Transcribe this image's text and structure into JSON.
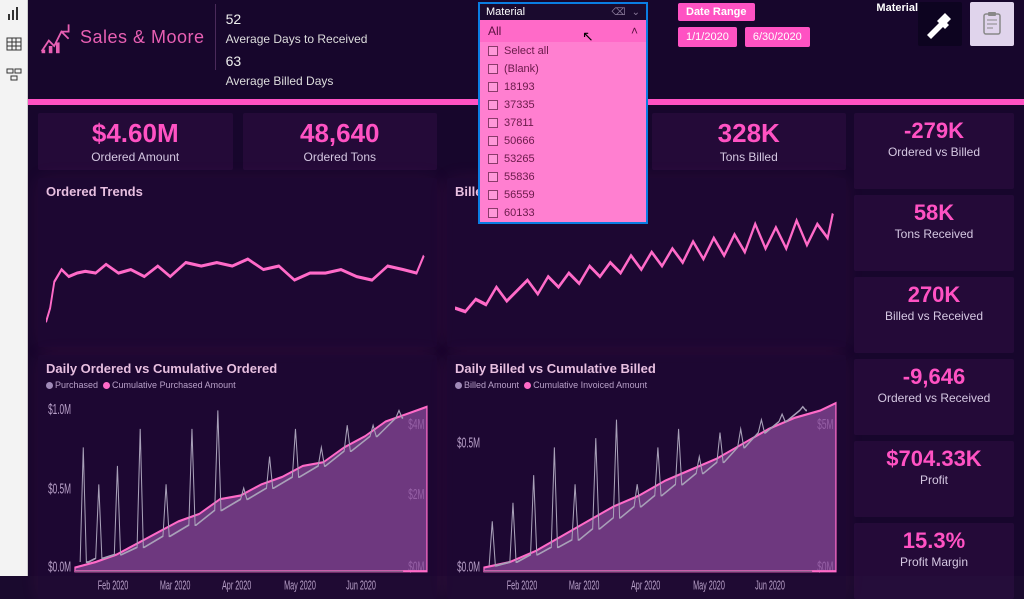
{
  "colors": {
    "accent": "#ff52c3",
    "background": "#17062c",
    "card": "rgba(40,10,60,0.4)",
    "text_light": "#d5c8e2",
    "line_chart": "#ff6ac8",
    "purchased_dot": "#a08ab8",
    "area_fill": "#b05cb0",
    "area_stroke": "#ff6ac8",
    "grey_line": "#a8a0b8",
    "slicer_highlight": "#0a7de2"
  },
  "brand": {
    "name": "Sales & Moore"
  },
  "facts": {
    "n1": "52",
    "l1": "Average Days to Received",
    "n2": "63",
    "l2": "Average Billed Days"
  },
  "date_range": {
    "title": "Date Range",
    "from": "1/1/2020",
    "to": "6/30/2020"
  },
  "mat_label": "Material",
  "kpis_top": [
    {
      "val": "$4.60M",
      "lbl": "Ordered Amount"
    },
    {
      "val": "48,640",
      "lbl": "Ordered Tons"
    },
    {
      "val": "",
      "lbl": ""
    },
    {
      "val": "328K",
      "lbl": "Tons Billed"
    }
  ],
  "kpis_right": [
    {
      "val": "-279K",
      "lbl": "Ordered vs Billed"
    },
    {
      "val": "58K",
      "lbl": "Tons Received"
    },
    {
      "val": "270K",
      "lbl": "Billed vs Received"
    },
    {
      "val": "-9,646",
      "lbl": "Ordered vs Received"
    },
    {
      "val": "$704.33K",
      "lbl": "Profit"
    },
    {
      "val": "15.3%",
      "lbl": "Profit Margin"
    }
  ],
  "slicer": {
    "title": "Material",
    "selected": "All",
    "items": [
      "Select all",
      "(Blank)",
      "18193",
      "37335",
      "37811",
      "50666",
      "53265",
      "55836",
      "56559",
      "60133"
    ]
  },
  "ordered_trends": {
    "title": "Ordered Trends",
    "type": "line",
    "stroke": "#ff6ac8",
    "stroke_width": 1.8,
    "points": [
      0,
      68,
      4,
      60,
      8,
      45,
      15,
      38,
      22,
      42,
      30,
      40,
      38,
      39,
      48,
      40,
      58,
      35,
      70,
      40,
      82,
      38,
      95,
      42,
      108,
      36,
      120,
      42,
      135,
      34,
      150,
      36,
      165,
      34,
      180,
      36,
      195,
      32,
      210,
      38,
      225,
      36,
      240,
      44,
      255,
      40,
      270,
      40,
      285,
      38,
      300,
      42,
      315,
      44,
      330,
      36,
      345,
      38,
      358,
      40,
      365,
      30
    ]
  },
  "billed_trends": {
    "title": "Billed Trends",
    "type": "line",
    "stroke": "#ff6ac8",
    "stroke_width": 2,
    "points": [
      0,
      60,
      10,
      62,
      20,
      55,
      30,
      58,
      40,
      48,
      50,
      56,
      60,
      50,
      70,
      44,
      80,
      52,
      90,
      42,
      100,
      48,
      110,
      40,
      120,
      46,
      130,
      36,
      140,
      42,
      150,
      34,
      160,
      40,
      170,
      30,
      180,
      38,
      190,
      28,
      200,
      36,
      210,
      26,
      220,
      34,
      230,
      22,
      240,
      32,
      250,
      20,
      260,
      30,
      270,
      18,
      280,
      28,
      290,
      12,
      300,
      26,
      310,
      14,
      320,
      26,
      330,
      10,
      340,
      24,
      350,
      12,
      360,
      20,
      365,
      6
    ]
  },
  "daily_ordered": {
    "title": "Daily Ordered vs Cumulative Ordered",
    "legend": [
      {
        "color": "#a08ab8",
        "label": "Purchased"
      },
      {
        "color": "#ff6ac8",
        "label": "Cumulative Purchased Amount"
      }
    ],
    "y_left": {
      "ticks": [
        "$1.0M",
        "$0.5M",
        "$0.0M"
      ]
    },
    "y_right": {
      "ticks": [
        "$4M",
        "$2M",
        "$0M"
      ]
    },
    "x_ticks": [
      "Feb 2020",
      "Mar 2020",
      "Apr 2020",
      "May 2020",
      "Jun 2020"
    ],
    "area": [
      0,
      95,
      20,
      92,
      40,
      88,
      60,
      82,
      80,
      76,
      100,
      70,
      120,
      66,
      140,
      58,
      160,
      56,
      180,
      50,
      200,
      46,
      220,
      40,
      240,
      38,
      260,
      30,
      280,
      24,
      300,
      16,
      320,
      12,
      340,
      8
    ],
    "spikes": [
      5,
      92,
      8,
      30,
      11,
      92,
      13,
      92,
      20,
      90,
      23,
      50,
      26,
      90,
      27,
      90,
      38,
      88,
      41,
      40,
      44,
      88,
      45,
      88,
      60,
      84,
      63,
      20,
      66,
      84,
      67,
      84,
      85,
      78,
      88,
      50,
      91,
      78,
      92,
      78,
      110,
      72,
      113,
      20,
      116,
      72,
      117,
      72,
      135,
      64,
      138,
      10,
      141,
      64,
      142,
      64,
      160,
      58,
      163,
      52,
      166,
      58,
      167,
      58,
      185,
      52,
      188,
      35,
      191,
      52,
      192,
      52,
      210,
      46,
      213,
      20,
      216,
      46,
      217,
      46,
      235,
      40,
      238,
      30,
      241,
      40,
      242,
      40,
      260,
      32,
      263,
      18,
      266,
      32,
      267,
      32,
      285,
      24,
      288,
      18,
      291,
      24,
      292,
      24,
      310,
      14,
      313,
      10,
      316,
      14,
      317,
      14
    ]
  },
  "daily_billed": {
    "title": "Daily Billed vs Cumulative Billed",
    "legend": [
      {
        "color": "#a08ab8",
        "label": "Billed Amount"
      },
      {
        "color": "#ff6ac8",
        "label": "Cumulative Invoiced Amount"
      }
    ],
    "y_left": {
      "ticks": [
        "$0.5M",
        "$0.0M"
      ]
    },
    "y_right": {
      "ticks": [
        "$5M",
        "$0M"
      ]
    },
    "x_ticks": [
      "Feb 2020",
      "Mar 2020",
      "Apr 2020",
      "May 2020",
      "Jun 2020"
    ],
    "area": [
      0,
      95,
      25,
      92,
      50,
      86,
      75,
      78,
      100,
      70,
      125,
      62,
      150,
      56,
      175,
      48,
      200,
      42,
      225,
      36,
      250,
      28,
      275,
      20,
      300,
      14,
      325,
      10,
      340,
      6
    ],
    "spikes": [
      5,
      94,
      8,
      70,
      11,
      94,
      12,
      94,
      25,
      92,
      28,
      60,
      31,
      92,
      32,
      92,
      45,
      88,
      48,
      45,
      51,
      88,
      52,
      88,
      65,
      84,
      68,
      30,
      71,
      84,
      72,
      84,
      85,
      80,
      88,
      50,
      91,
      80,
      92,
      80,
      105,
      74,
      108,
      25,
      111,
      74,
      112,
      74,
      125,
      68,
      128,
      15,
      131,
      68,
      132,
      68,
      145,
      62,
      148,
      50,
      151,
      62,
      152,
      62,
      165,
      56,
      168,
      30,
      171,
      56,
      172,
      56,
      185,
      50,
      188,
      20,
      191,
      50,
      192,
      50,
      205,
      44,
      208,
      35,
      211,
      44,
      212,
      44,
      225,
      38,
      228,
      22,
      231,
      38,
      232,
      38,
      245,
      30,
      248,
      20,
      251,
      30,
      252,
      30,
      265,
      22,
      268,
      15,
      271,
      22,
      272,
      22,
      285,
      16,
      288,
      12,
      291,
      16,
      292,
      16,
      305,
      10,
      308,
      8,
      311,
      10,
      312,
      10
    ]
  }
}
